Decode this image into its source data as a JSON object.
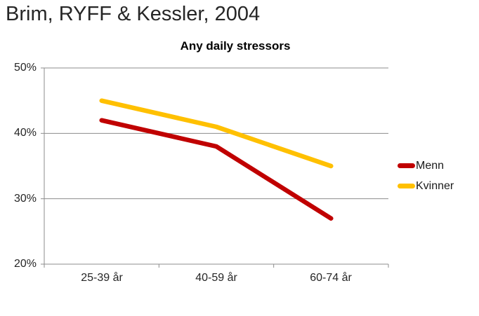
{
  "page": {
    "title": "Brim, RYFF & Kessler, 2004"
  },
  "chart_data": {
    "type": "line",
    "title": "Any daily stressors",
    "categories": [
      "25-39 år",
      "40-59 år",
      "60-74 år"
    ],
    "series": [
      {
        "name": "Menn",
        "color": "#C00000",
        "values": [
          42,
          38,
          27
        ]
      },
      {
        "name": "Kvinner",
        "color": "#FFC000",
        "values": [
          45,
          41,
          35
        ]
      }
    ],
    "yticks": [
      "50%",
      "40%",
      "30%",
      "20%"
    ],
    "ylim": [
      20,
      50
    ],
    "grid": true,
    "legend_position": "right",
    "gridline_color": "#8c8c8c",
    "axis_color": "#8c8c8c"
  }
}
